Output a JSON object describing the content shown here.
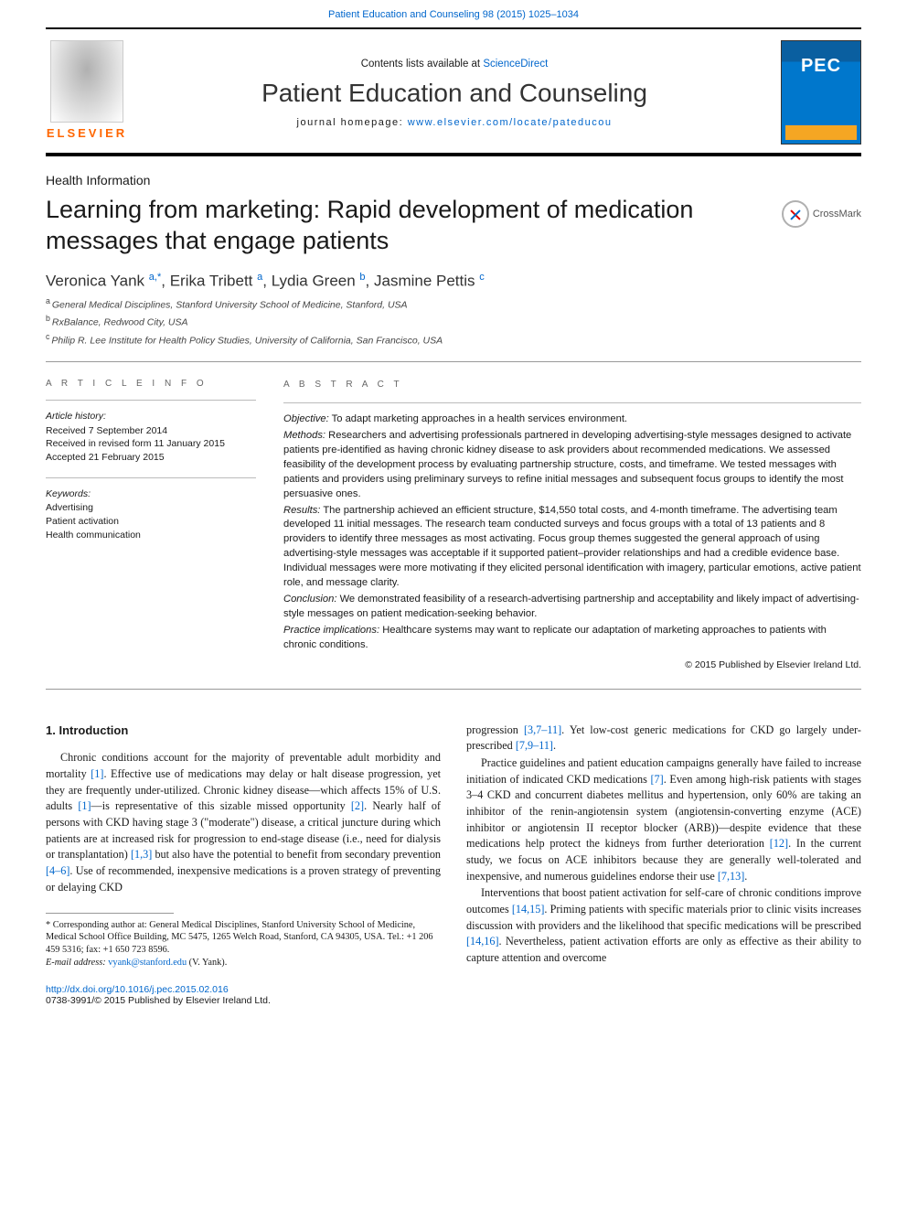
{
  "header": {
    "citation_journal": "Patient Education and Counseling 98 (2015) 1025–1034",
    "contents_prefix": "Contents lists available at ",
    "contents_link": "ScienceDirect",
    "journal_name": "Patient Education and Counseling",
    "homepage_prefix": "journal homepage: ",
    "homepage_url": "www.elsevier.com/locate/pateducou",
    "elsevier_word": "ELSEVIER"
  },
  "article": {
    "section_type": "Health Information",
    "title": "Learning from marketing: Rapid development of medication messages that engage patients",
    "crossmark_label": "CrossMark",
    "authors_html": "Veronica Yank <sup>a,*</sup>, Erika Tribett <sup>a</sup>, Lydia Green <sup>b</sup>, Jasmine Pettis <sup>c</sup>",
    "affiliations": [
      {
        "sup": "a",
        "text": "General Medical Disciplines, Stanford University School of Medicine, Stanford, USA"
      },
      {
        "sup": "b",
        "text": "RxBalance, Redwood City, USA"
      },
      {
        "sup": "c",
        "text": "Philip R. Lee Institute for Health Policy Studies, University of California, San Francisco, USA"
      }
    ]
  },
  "info": {
    "heading": "A R T I C L E   I N F O",
    "history_label": "Article history:",
    "history": [
      "Received 7 September 2014",
      "Received in revised form 11 January 2015",
      "Accepted 21 February 2015"
    ],
    "keywords_label": "Keywords:",
    "keywords": [
      "Advertising",
      "Patient activation",
      "Health communication"
    ]
  },
  "abstract": {
    "heading": "A B S T R A C T",
    "objective_label": "Objective:",
    "objective": "To adapt marketing approaches in a health services environment.",
    "methods_label": "Methods:",
    "methods": "Researchers and advertising professionals partnered in developing advertising-style messages designed to activate patients pre-identified as having chronic kidney disease to ask providers about recommended medications. We assessed feasibility of the development process by evaluating partnership structure, costs, and timeframe. We tested messages with patients and providers using preliminary surveys to refine initial messages and subsequent focus groups to identify the most persuasive ones.",
    "results_label": "Results:",
    "results": "The partnership achieved an efficient structure, $14,550 total costs, and 4-month timeframe. The advertising team developed 11 initial messages. The research team conducted surveys and focus groups with a total of 13 patients and 8 providers to identify three messages as most activating. Focus group themes suggested the general approach of using advertising-style messages was acceptable if it supported patient–provider relationships and had a credible evidence base. Individual messages were more motivating if they elicited personal identification with imagery, particular emotions, active patient role, and message clarity.",
    "conclusion_label": "Conclusion:",
    "conclusion": "We demonstrated feasibility of a research-advertising partnership and acceptability and likely impact of advertising-style messages on patient medication-seeking behavior.",
    "practice_label": "Practice implications:",
    "practice": "Healthcare systems may want to replicate our adaptation of marketing approaches to patients with chronic conditions.",
    "copyright": "© 2015 Published by Elsevier Ireland Ltd."
  },
  "body": {
    "intro_heading": "1. Introduction",
    "col1_p1_a": "Chronic conditions account for the majority of preventable adult morbidity and mortality ",
    "col1_p1_ref1": "[1]",
    "col1_p1_b": ". Effective use of medications may delay or halt disease progression, yet they are frequently under-utilized. Chronic kidney disease—which affects 15% of U.S. adults ",
    "col1_p1_ref2": "[1]",
    "col1_p1_c": "—is representative of this sizable missed opportunity ",
    "col1_p1_ref3": "[2]",
    "col1_p1_d": ". Nearly half of persons with CKD having stage 3 (\"moderate\") disease, a critical juncture during which patients are at increased risk for progression to end-stage disease (i.e., need for dialysis or transplantation) ",
    "col1_p1_ref4": "[1,3]",
    "col1_p1_e": " but also have the potential to benefit from secondary prevention ",
    "col1_p1_ref5": "[4–6]",
    "col1_p1_f": ". Use of recommended, inexpensive medications is a proven strategy of preventing or delaying CKD",
    "col2_p1_a": "progression ",
    "col2_p1_ref1": "[3,7–11]",
    "col2_p1_b": ". Yet low-cost generic medications for CKD go largely under-prescribed ",
    "col2_p1_ref2": "[7,9–11]",
    "col2_p1_c": ".",
    "col2_p2_a": "Practice guidelines and patient education campaigns generally have failed to increase initiation of indicated CKD medications ",
    "col2_p2_ref1": "[7]",
    "col2_p2_b": ". Even among high-risk patients with stages 3–4 CKD and concurrent diabetes mellitus and hypertension, only 60% are taking an inhibitor of the renin-angiotensin system (angiotensin-converting enzyme (ACE) inhibitor or angiotensin II receptor blocker (ARB))—despite evidence that these medications help protect the kidneys from further deterioration ",
    "col2_p2_ref2": "[12]",
    "col2_p2_c": ". In the current study, we focus on ACE inhibitors because they are generally well-tolerated and inexpensive, and numerous guidelines endorse their use ",
    "col2_p2_ref3": "[7,13]",
    "col2_p2_d": ".",
    "col2_p3_a": "Interventions that boost patient activation for self-care of chronic conditions improve outcomes ",
    "col2_p3_ref1": "[14,15]",
    "col2_p3_b": ". Priming patients with specific materials prior to clinic visits increases discussion with providers and the likelihood that specific medications will be prescribed ",
    "col2_p3_ref2": "[14,16]",
    "col2_p3_c": ". Nevertheless, patient activation efforts are only as effective as their ability to capture attention and overcome"
  },
  "footnote": {
    "corr_a": "* Corresponding author at: General Medical Disciplines, Stanford University School of Medicine, Medical School Office Building, MC 5475, 1265 Welch Road, Stanford, CA 94305, USA. Tel.: +1 206 459 5316; fax: +1 650 723 8596.",
    "email_label": "E-mail address: ",
    "email": "vyank@stanford.edu",
    "email_suffix": " (V. Yank)."
  },
  "doi": {
    "url": "http://dx.doi.org/10.1016/j.pec.2015.02.016",
    "issn_line": "0738-3991/© 2015 Published by Elsevier Ireland Ltd."
  },
  "colors": {
    "link": "#0066cc",
    "elsevier_orange": "#ff6600",
    "text": "#1a1a1a",
    "rule": "#999999"
  }
}
